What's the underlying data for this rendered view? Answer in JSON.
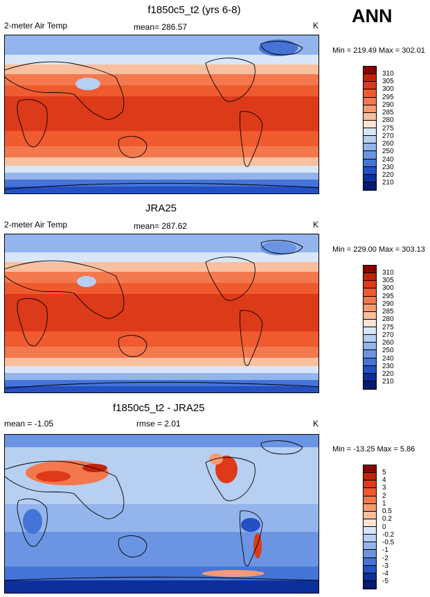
{
  "season": "ANN",
  "panels": [
    {
      "title": "f1850c5_t2 (yrs 6-8)",
      "left_label": "2-meter Air Temp",
      "center_label": "mean= 286.57",
      "units": "K",
      "minmax": "Min = 219.49 Max = 302.01",
      "colorbar": {
        "labels": [
          "310",
          "305",
          "300",
          "295",
          "290",
          "285",
          "280",
          "275",
          "270",
          "260",
          "250",
          "240",
          "230",
          "220",
          "210"
        ],
        "colors": [
          "#8b0000",
          "#c2230b",
          "#dd3a1a",
          "#ef5a2f",
          "#f4784d",
          "#f79a72",
          "#f9bf9f",
          "#fde3d2",
          "#d9e6f7",
          "#b7cff1",
          "#94b5ec",
          "#6b95e3",
          "#4574d6",
          "#2450c4",
          "#0c2f9c",
          "#061a70"
        ]
      }
    },
    {
      "title": "JRA25",
      "left_label": "2-meter Air Temp",
      "center_label": "mean= 287.62",
      "units": "K",
      "minmax": "Min = 229.00 Max = 303.13",
      "colorbar": {
        "labels": [
          "310",
          "305",
          "300",
          "295",
          "290",
          "285",
          "280",
          "275",
          "270",
          "260",
          "250",
          "240",
          "230",
          "220",
          "210"
        ],
        "colors": [
          "#8b0000",
          "#c2230b",
          "#dd3a1a",
          "#ef5a2f",
          "#f4784d",
          "#f79a72",
          "#f9bf9f",
          "#fde3d2",
          "#d9e6f7",
          "#b7cff1",
          "#94b5ec",
          "#6b95e3",
          "#4574d6",
          "#2450c4",
          "#0c2f9c",
          "#061a70"
        ]
      }
    },
    {
      "title": "f1850c5_t2 - JRA25",
      "left_label": "mean =  -1.05",
      "center_label": "rmse =   2.01",
      "units": "K",
      "minmax": "Min = -13.25 Max =   5.86",
      "colorbar": {
        "labels": [
          "5",
          "4",
          "3",
          "2",
          "1",
          "0.5",
          "0.2",
          "0",
          "-0.2",
          "-0.5",
          "-1",
          "-2",
          "-3",
          "-4",
          "-5"
        ],
        "colors": [
          "#8b0000",
          "#c2230b",
          "#dd3a1a",
          "#ef5a2f",
          "#f4784d",
          "#f79a72",
          "#f9bf9f",
          "#fde3d2",
          "#d9e6f7",
          "#b7cff1",
          "#94b5ec",
          "#6b95e3",
          "#4574d6",
          "#2450c4",
          "#0c2f9c",
          "#061a70"
        ]
      }
    }
  ]
}
